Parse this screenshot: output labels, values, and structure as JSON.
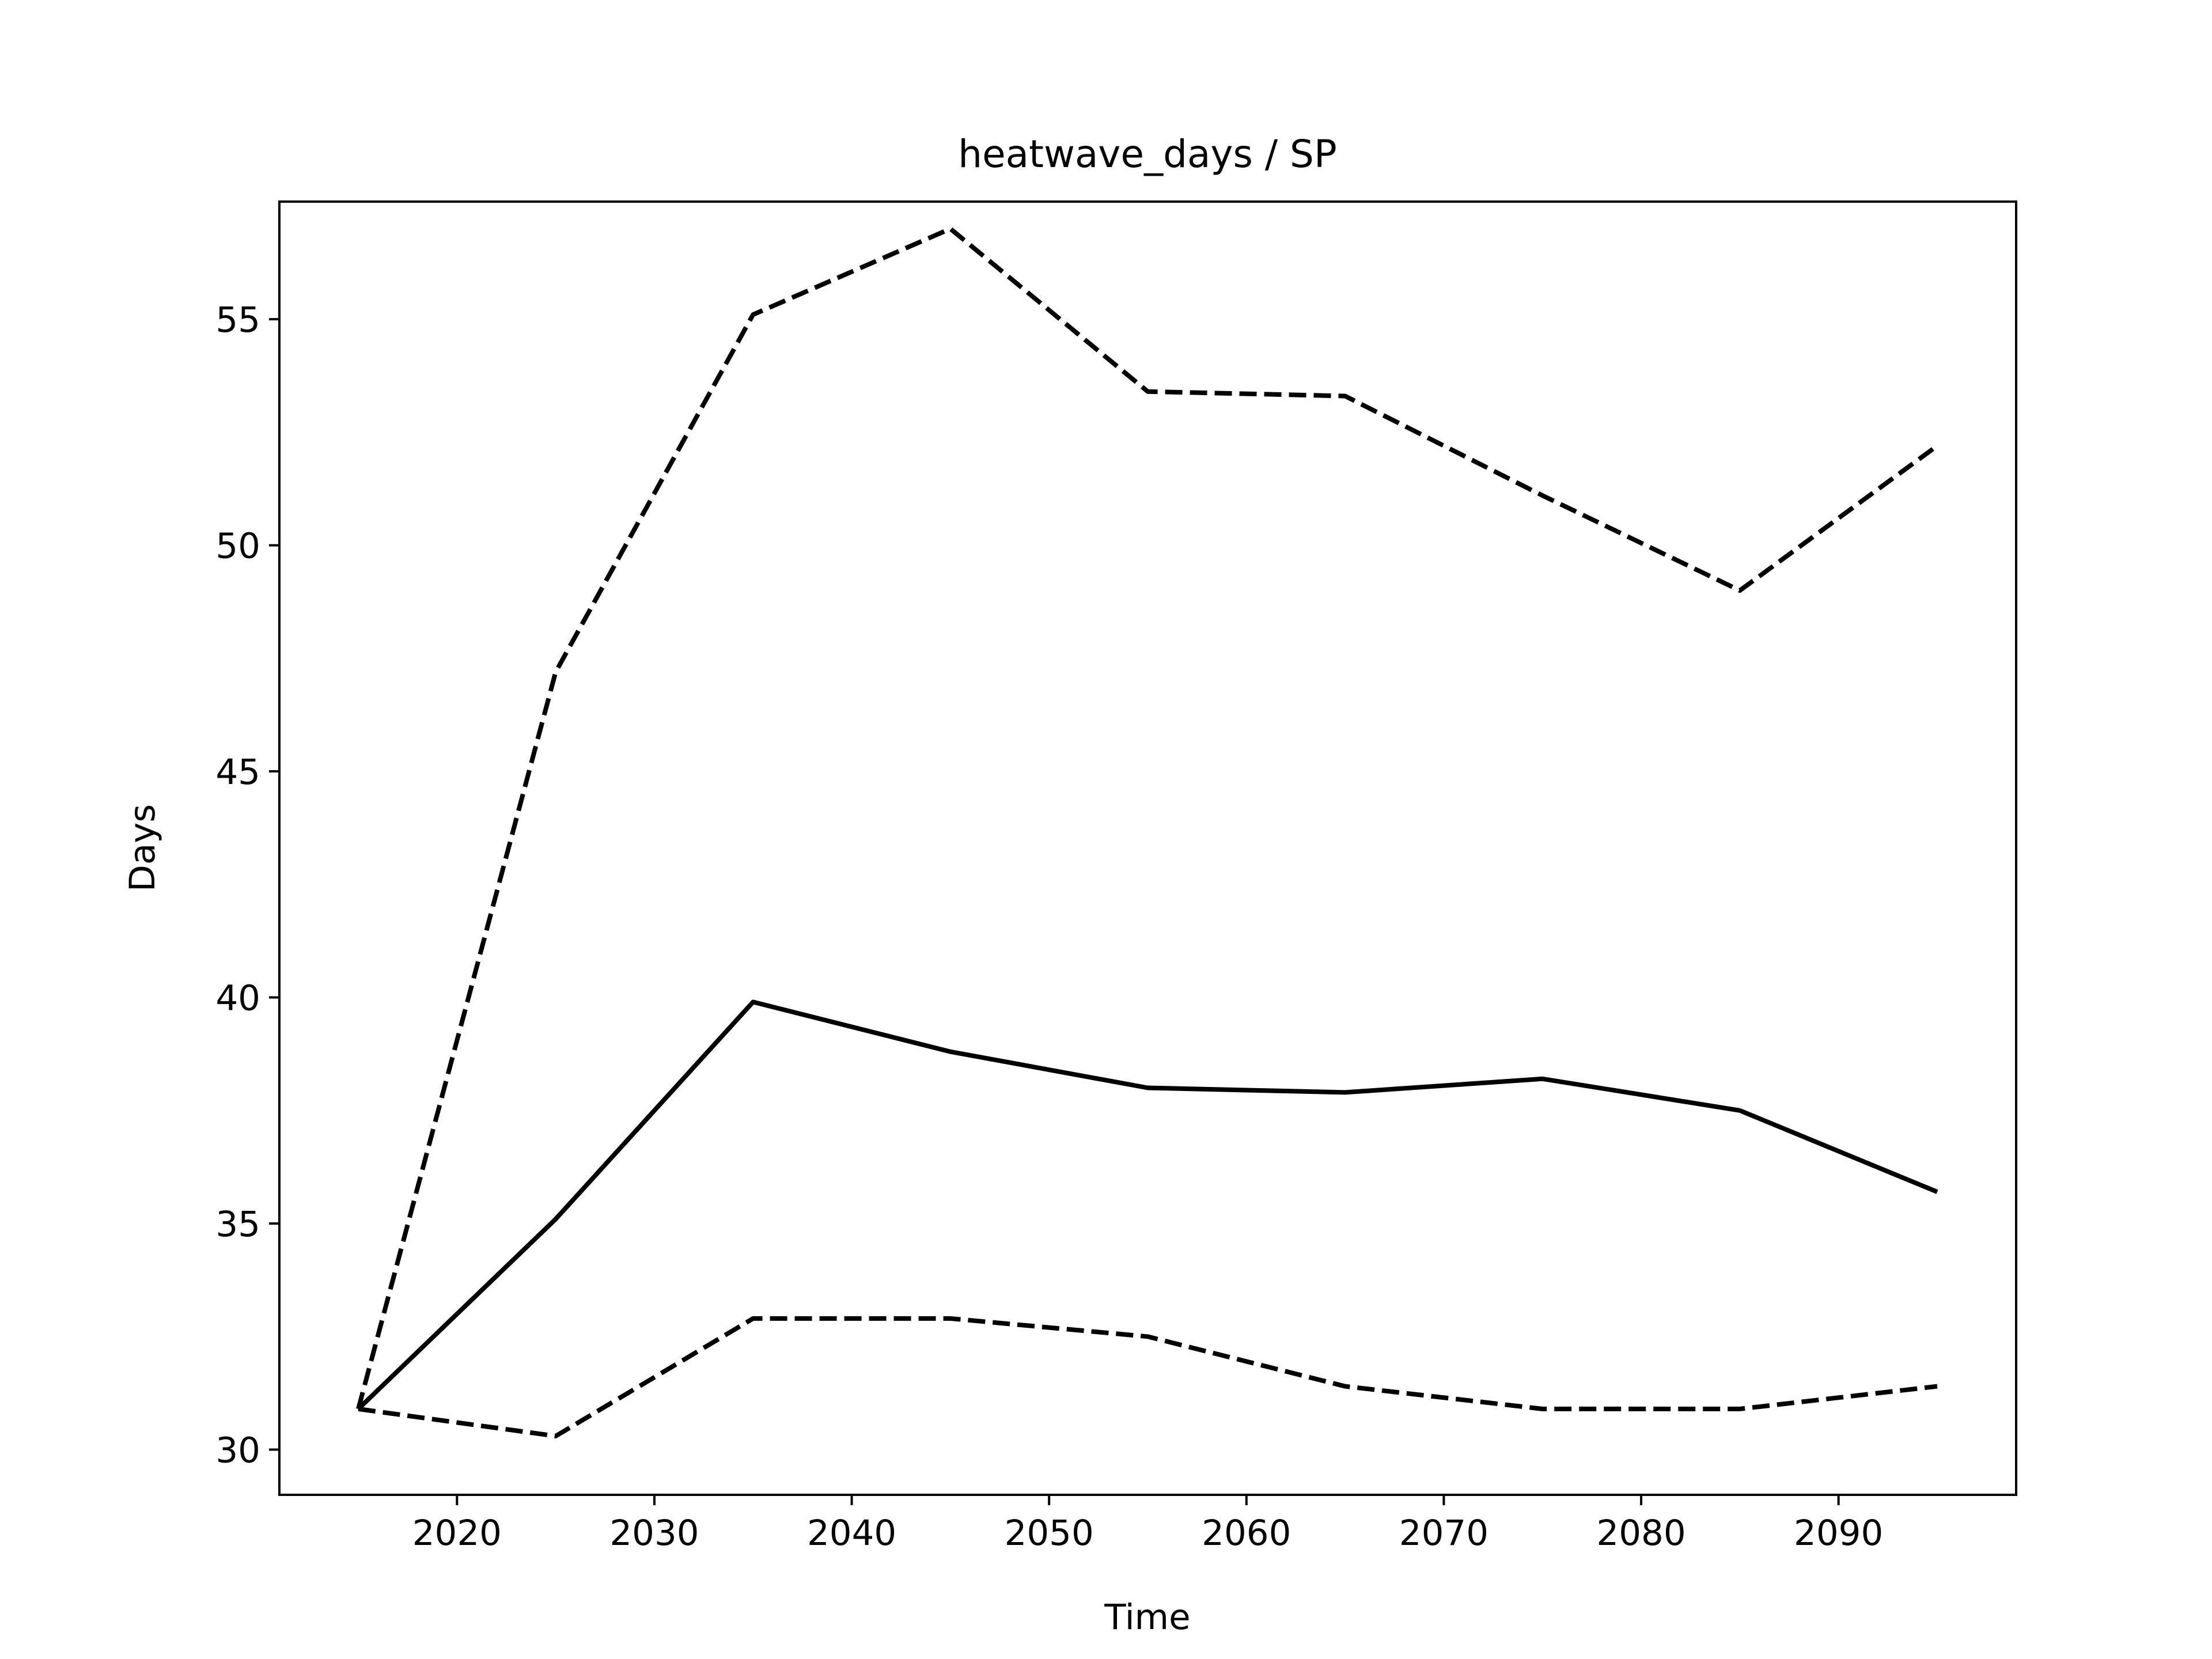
{
  "chart_data": {
    "type": "line",
    "title": "heatwave_days / SP",
    "xlabel": "Time",
    "ylabel": "Days",
    "xlim": [
      2011,
      2099
    ],
    "ylim": [
      29.0,
      57.6
    ],
    "xticks": [
      2020,
      2030,
      2040,
      2050,
      2060,
      2070,
      2080,
      2090
    ],
    "yticks": [
      30,
      35,
      40,
      45,
      50,
      55
    ],
    "grid": false,
    "x": [
      2015,
      2025,
      2035,
      2045,
      2055,
      2065,
      2075,
      2085,
      2095
    ],
    "series": [
      {
        "style": "solid",
        "color": "#000000",
        "values": [
          30.9,
          35.1,
          39.9,
          38.8,
          38.0,
          37.9,
          38.2,
          37.5,
          35.7
        ]
      },
      {
        "style": "dashed",
        "color": "#000000",
        "values": [
          30.9,
          47.2,
          55.1,
          57.0,
          53.4,
          53.3,
          51.1,
          49.0,
          52.2
        ]
      },
      {
        "style": "dashed",
        "color": "#000000",
        "values": [
          30.9,
          30.3,
          32.9,
          32.9,
          32.5,
          31.4,
          30.9,
          30.9,
          31.4
        ]
      }
    ]
  }
}
